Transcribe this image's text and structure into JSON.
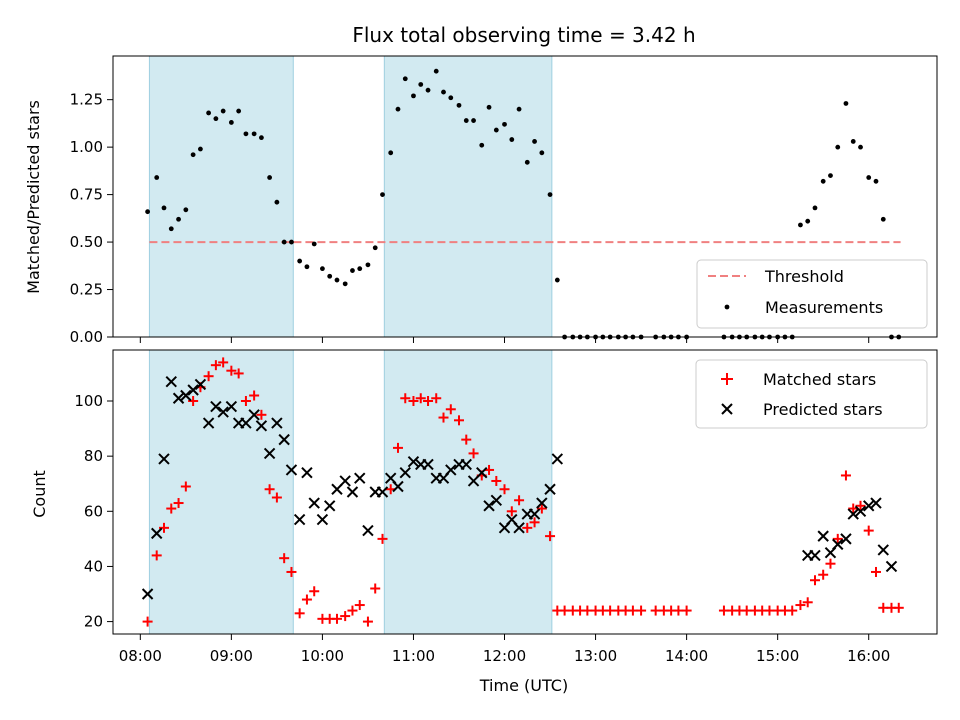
{
  "chart_data": [
    {
      "type": "scatter",
      "title": "Flux total observing time = 3.42 h",
      "ylabel": "Matched/Predicted stars",
      "xlabel": "",
      "xlim_hours": [
        7.7,
        16.75
      ],
      "ylim": [
        0,
        1.48
      ],
      "yticks": [
        "0.00",
        "0.25",
        "0.50",
        "0.75",
        "1.00",
        "1.25"
      ],
      "shaded_intervals_hours": [
        [
          8.1,
          9.68
        ],
        [
          10.68,
          12.52
        ]
      ],
      "threshold": {
        "name": "Threshold",
        "value": 0.5,
        "x_range_hours": [
          8.1,
          16.35
        ],
        "color": "#f08080"
      },
      "legend_position": "lower-right",
      "series": [
        {
          "name": "Measurements",
          "color": "#000000",
          "x": [
            8.08,
            8.18,
            8.26,
            8.34,
            8.42,
            8.5,
            8.58,
            8.66,
            8.75,
            8.83,
            8.91,
            9.0,
            9.08,
            9.16,
            9.25,
            9.33,
            9.42,
            9.5,
            9.58,
            9.66,
            9.75,
            9.83,
            9.91,
            10.0,
            10.08,
            10.16,
            10.25,
            10.33,
            10.41,
            10.5,
            10.58,
            10.66,
            10.75,
            10.83,
            10.91,
            11.0,
            11.08,
            11.16,
            11.25,
            11.33,
            11.41,
            11.5,
            11.58,
            11.66,
            11.75,
            11.83,
            11.91,
            12.0,
            12.08,
            12.16,
            12.25,
            12.33,
            12.41,
            12.5,
            12.58,
            12.66,
            12.75,
            12.83,
            12.91,
            13.0,
            13.08,
            13.16,
            13.25,
            13.33,
            13.41,
            13.5,
            13.66,
            13.75,
            13.83,
            13.91,
            14.0,
            14.41,
            14.5,
            14.58,
            14.66,
            14.75,
            14.83,
            14.91,
            15.0,
            15.08,
            15.16,
            15.25,
            15.33,
            15.41,
            15.5,
            15.58,
            15.66,
            15.75,
            15.83,
            15.91,
            16.0,
            16.08,
            16.16,
            16.25,
            16.33
          ],
          "y": [
            0.66,
            0.84,
            0.68,
            0.57,
            0.62,
            0.67,
            0.96,
            0.99,
            1.18,
            1.15,
            1.19,
            1.13,
            1.19,
            1.07,
            1.07,
            1.05,
            0.84,
            0.71,
            0.5,
            0.5,
            0.4,
            0.37,
            0.49,
            0.36,
            0.32,
            0.3,
            0.28,
            0.35,
            0.36,
            0.38,
            0.47,
            0.75,
            0.97,
            1.2,
            1.36,
            1.27,
            1.33,
            1.3,
            1.4,
            1.29,
            1.26,
            1.22,
            1.14,
            1.14,
            1.01,
            1.21,
            1.09,
            1.12,
            1.04,
            1.2,
            0.92,
            1.03,
            0.97,
            0.75,
            0.3,
            0,
            0,
            0,
            0,
            0,
            0,
            0,
            0,
            0,
            0,
            0,
            0,
            0,
            0,
            0,
            0,
            0,
            0,
            0,
            0,
            0,
            0,
            0,
            0,
            0,
            0,
            0.59,
            0.61,
            0.68,
            0.82,
            0.85,
            1.0,
            1.23,
            1.03,
            1.0,
            0.84,
            0.82,
            0.62,
            0,
            0
          ]
        }
      ]
    },
    {
      "type": "scatter",
      "title": "",
      "ylabel": "Count",
      "xlabel": "Time (UTC)",
      "xlim_hours": [
        7.7,
        16.75
      ],
      "ylim": [
        15.5,
        118.5
      ],
      "yticks": [
        "20",
        "40",
        "60",
        "80",
        "100"
      ],
      "xticks": [
        "08:00",
        "09:00",
        "10:00",
        "11:00",
        "12:00",
        "13:00",
        "14:00",
        "15:00",
        "16:00"
      ],
      "shaded_intervals_hours": [
        [
          8.1,
          9.68
        ],
        [
          10.68,
          12.52
        ]
      ],
      "legend_position": "upper-right",
      "series": [
        {
          "name": "Matched stars",
          "marker": "plus",
          "color": "#ff0000",
          "x": [
            8.08,
            8.18,
            8.26,
            8.34,
            8.42,
            8.5,
            8.58,
            8.66,
            8.75,
            8.83,
            8.91,
            9.0,
            9.08,
            9.16,
            9.25,
            9.33,
            9.42,
            9.5,
            9.58,
            9.66,
            9.75,
            9.83,
            9.91,
            10.0,
            10.08,
            10.16,
            10.25,
            10.33,
            10.41,
            10.5,
            10.58,
            10.66,
            10.75,
            10.83,
            10.91,
            11.0,
            11.08,
            11.16,
            11.25,
            11.33,
            11.41,
            11.5,
            11.58,
            11.66,
            11.75,
            11.83,
            11.91,
            12.0,
            12.08,
            12.16,
            12.25,
            12.33,
            12.41,
            12.5,
            12.58,
            12.66,
            12.75,
            12.83,
            12.91,
            13.0,
            13.08,
            13.16,
            13.25,
            13.33,
            13.41,
            13.5,
            13.66,
            13.75,
            13.83,
            13.91,
            14.0,
            14.41,
            14.5,
            14.58,
            14.66,
            14.75,
            14.83,
            14.91,
            15.0,
            15.08,
            15.16,
            15.25,
            15.33,
            15.41,
            15.5,
            15.58,
            15.66,
            15.75,
            15.83,
            15.91,
            16.0,
            16.08,
            16.16,
            16.25,
            16.33
          ],
          "y": [
            20,
            44,
            54,
            61,
            63,
            69,
            100,
            105,
            109,
            113,
            114,
            111,
            110,
            100,
            102,
            95,
            68,
            65,
            43,
            38,
            23,
            28,
            31,
            21,
            21,
            21,
            22,
            24,
            26,
            20,
            32,
            50,
            68,
            83,
            101,
            100,
            101,
            100,
            101,
            94,
            97,
            93,
            86,
            81,
            73,
            75,
            71,
            68,
            60,
            64,
            54,
            56,
            61,
            51,
            24,
            24,
            24,
            24,
            24,
            24,
            24,
            24,
            24,
            24,
            24,
            24,
            24,
            24,
            24,
            24,
            24,
            24,
            24,
            24,
            24,
            24,
            24,
            24,
            24,
            24,
            24,
            26,
            27,
            35,
            37,
            41,
            50,
            73,
            61,
            62,
            53,
            38,
            25,
            25,
            25
          ]
        },
        {
          "name": "Predicted stars",
          "marker": "x",
          "color": "#000000",
          "x": [
            8.08,
            8.18,
            8.26,
            8.34,
            8.42,
            8.5,
            8.58,
            8.66,
            8.75,
            8.83,
            8.91,
            9.0,
            9.08,
            9.16,
            9.25,
            9.33,
            9.42,
            9.5,
            9.58,
            9.66,
            9.75,
            9.83,
            9.91,
            10.0,
            10.08,
            10.16,
            10.25,
            10.33,
            10.41,
            10.5,
            10.58,
            10.66,
            10.75,
            10.83,
            10.91,
            11.0,
            11.08,
            11.16,
            11.25,
            11.33,
            11.41,
            11.5,
            11.58,
            11.66,
            11.75,
            11.83,
            11.91,
            12.0,
            12.08,
            12.16,
            12.25,
            12.33,
            12.41,
            12.5,
            12.58,
            15.33,
            15.41,
            15.5,
            15.58,
            15.66,
            15.75,
            15.83,
            15.91,
            16.0,
            16.08,
            16.16,
            16.25
          ],
          "y": [
            30,
            52,
            79,
            107,
            101,
            102,
            104,
            106,
            92,
            98,
            96,
            98,
            92,
            92,
            95,
            91,
            81,
            92,
            86,
            75,
            57,
            74,
            63,
            57,
            62,
            68,
            71,
            67,
            72,
            53,
            67,
            67,
            72,
            69,
            74,
            78,
            77,
            77,
            72,
            72,
            75,
            77,
            77,
            71,
            74,
            62,
            64,
            54,
            57,
            54,
            59,
            59,
            63,
            68,
            79,
            44,
            44,
            51,
            45,
            48,
            50,
            59,
            60,
            62,
            63,
            46,
            40
          ]
        }
      ]
    }
  ]
}
